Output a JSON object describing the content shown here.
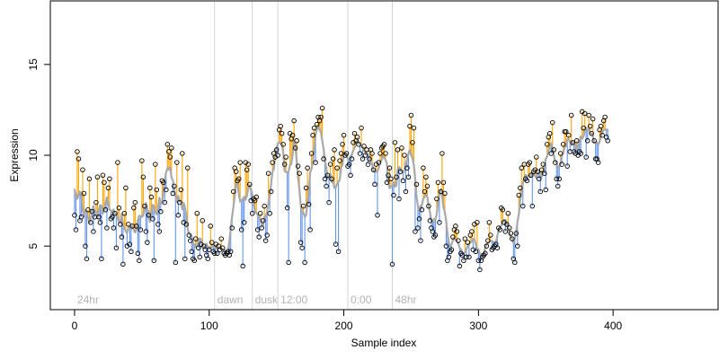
{
  "chart_data": {
    "type": "scatter",
    "title": "",
    "xlabel": "Sample index",
    "ylabel": "Expression",
    "xlim": [
      -18,
      478
    ],
    "ylim": [
      1.5,
      18.5
    ],
    "x_ticks": [
      0,
      100,
      200,
      300,
      400
    ],
    "y_ticks": [
      5,
      10,
      15
    ],
    "grid": false,
    "legend": "none",
    "colors": {
      "above_trend": "#ffa500",
      "below_trend": "#6495ed",
      "trend": "#a9a9a9",
      "point_edge": "#000000",
      "annotation": "#d3d3d3",
      "annotation_text": "#b3b3b3"
    },
    "annotations": [
      {
        "label": "24hr",
        "x": 0
      },
      {
        "label": "dawn",
        "x": 104
      },
      {
        "label": "dusk",
        "x": 132
      },
      {
        "label": "12:00",
        "x": 151
      },
      {
        "label": "0:00",
        "x": 203
      },
      {
        "label": "48hr",
        "x": 236
      }
    ],
    "points": [
      6.7,
      5.9,
      10.2,
      9.8,
      6.4,
      6.6,
      9.2,
      7.9,
      5.0,
      4.3,
      7.0,
      8.7,
      6.3,
      6.9,
      5.8,
      6.6,
      7.4,
      8.8,
      6.6,
      6.3,
      4.3,
      8.9,
      8.5,
      7.0,
      6.0,
      8.2,
      8.7,
      6.5,
      6.6,
      6.0,
      6.8,
      4.9,
      9.6,
      7.1,
      6.2,
      5.5,
      4.0,
      6.8,
      8.2,
      5.0,
      6.2,
      5.1,
      4.7,
      6.1,
      7.1,
      7.4,
      6.1,
      4.6,
      4.2,
      5.9,
      9.7,
      8.8,
      7.2,
      5.8,
      5.2,
      6.7,
      8.2,
      7.7,
      6.5,
      4.2,
      9.5,
      8.1,
      6.2,
      5.8,
      6.9,
      8.6,
      8.5,
      7.4,
      8.1,
      10.6,
      10.2,
      9.9,
      10.4,
      7.9,
      8.3,
      4.1,
      9.6,
      6.7,
      7.4,
      8.1,
      10.1,
      6.3,
      4.3,
      6.2,
      9.3,
      5.6,
      5.3,
      4.7,
      4.3,
      4.2,
      5.4,
      6.8,
      4.9,
      4.4,
      5.1,
      6.4,
      5.0,
      4.8,
      4.5,
      4.3,
      4.8,
      6.1,
      5.2,
      4.7,
      4.6,
      5.1,
      4.6,
      5.0,
      4.8,
      5.4,
      4.9,
      4.6,
      4.5,
      4.6,
      4.7,
      4.5,
      4.7,
      6.0,
      8.0,
      9.3,
      9.1,
      8.6,
      8.7,
      9.6,
      5.9,
      3.9,
      6.3,
      9.6,
      9.2,
      9.5,
      8.4,
      7.5,
      6.8,
      7.6,
      7.5,
      7.7,
      5.9,
      5.5,
      6.8,
      6.0,
      6.4,
      7.2,
      5.3,
      5.6,
      9.0,
      6.8,
      8.0,
      9.6,
      10.1,
      9.9,
      10.3,
      10.0,
      11.4,
      11.6,
      11.2,
      10.6,
      9.5,
      9.9,
      7.1,
      4.1,
      11.2,
      10.9,
      11.1,
      11.9,
      10.4,
      10.8,
      9.4,
      9.0,
      5.2,
      4.9,
      7.2,
      4.1,
      8.2,
      9.3,
      7.3,
      5.9,
      10.1,
      11.1,
      11.5,
      9.6,
      11.7,
      12.1,
      11.9,
      12.1,
      12.6,
      9.8,
      8.7,
      8.3,
      8.9,
      7.4,
      9.5,
      8.7,
      9.8,
      10.3,
      5.1,
      9.3,
      4.7,
      9.7,
      10.1,
      10.6,
      11.1,
      10.0,
      10.1,
      9.4,
      9.5,
      8.9,
      9.8,
      10.7,
      11.2,
      10.8,
      11.0,
      10.6,
      10.1,
      11.5,
      9.8,
      10.5,
      10.0,
      10.3,
      9.5,
      9.8,
      10.3,
      10.1,
      9.2,
      8.4,
      9.5,
      6.7,
      9.6,
      10.1,
      10.4,
      10.5,
      10.6,
      10.1,
      8.5,
      8.9,
      9.3,
      8.7,
      4.0,
      7.8,
      10.7,
      8.8,
      10.3,
      7.6,
      9.1,
      10.4,
      8.6,
      10.0,
      8.0,
      9.3,
      8.8,
      11.6,
      12.2,
      10.7,
      11.5,
      5.8,
      8.4,
      6.0,
      6.5,
      5.3,
      7.0,
      9.3,
      8.0,
      8.8,
      8.3,
      7.2,
      6.4,
      6.0,
      5.8,
      5.5,
      5.6,
      7.6,
      8.5,
      6.3,
      8.0,
      10.1,
      8.5,
      7.9,
      5.0,
      4.2,
      4.4,
      4.7,
      4.8,
      5.5,
      5.9,
      6.1,
      5.8,
      5.3,
      3.9,
      4.6,
      4.5,
      4.2,
      5.4,
      4.4,
      5.2,
      4.4,
      5.6,
      5.8,
      4.8,
      6.2,
      4.7,
      6.3,
      4.2,
      3.7,
      4.2,
      4.4,
      4.5,
      4.6,
      5.0,
      5.3,
      6.3,
      5.6,
      4.8,
      4.9,
      5.0,
      5.1,
      4.9,
      6.0,
      5.9,
      7.1,
      7.0,
      6.3,
      5.8,
      6.2,
      6.8,
      6.0,
      5.7,
      5.4,
      4.3,
      4.1,
      5.7,
      5.0,
      7.8,
      8.2,
      9.3,
      7.2,
      9.5,
      8.7,
      8.6,
      9.5,
      9.6,
      8.9,
      7.2,
      9.1,
      9.2,
      9.9,
      9.1,
      8.7,
      8.0,
      9.2,
      9.5,
      9.0,
      8.1,
      10.6,
      11.0,
      11.2,
      10.1,
      11.8,
      10.3,
      9.6,
      8.7,
      8.3,
      8.7,
      10.1,
      9.5,
      10.6,
      11.3,
      11.3,
      9.4,
      11.1,
      10.2,
      12.2,
      10.7,
      10.2,
      10.1,
      10.8,
      10.0,
      10.2,
      10.1,
      12.4,
      11.5,
      12.3,
      9.9,
      10.8,
      12.2,
      11.6,
      11.2,
      12.0,
      10.8,
      9.8,
      9.8,
      9.6,
      11.4,
      11.6,
      11.1,
      11.9,
      12.1,
      11.0,
      10.8
    ]
  }
}
